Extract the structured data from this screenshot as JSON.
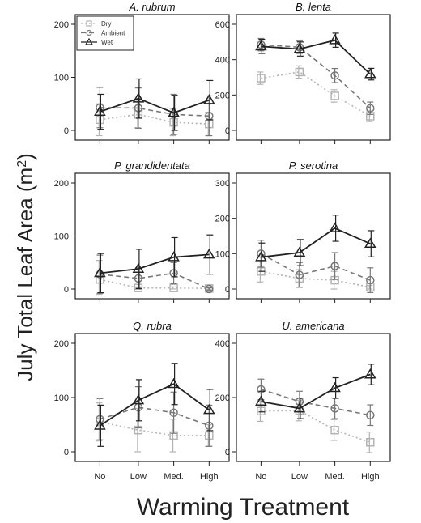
{
  "figure": {
    "ylabel": "July Total Leaf Area (m",
    "ylabel_sup": "2",
    "ylabel_close": ")",
    "xlabel": "Warming Treatment"
  },
  "chart_data": [
    {
      "type": "line",
      "title": "A. rubrum",
      "categories": [
        "No",
        "Low",
        "Med.",
        "High"
      ],
      "ylim": [
        0,
        200
      ],
      "yticks": [
        0,
        100,
        200
      ],
      "legend": {
        "placement": "top-left",
        "entries": [
          "Dry",
          "Ambient",
          "Wet"
        ]
      },
      "series": [
        {
          "name": "Dry",
          "color": "#b3b3b3",
          "values": [
            20,
            30,
            15,
            12
          ],
          "errors": [
            30,
            25,
            25,
            22
          ]
        },
        {
          "name": "Ambient",
          "color": "#777777",
          "values": [
            43,
            42,
            30,
            27
          ],
          "errors": [
            38,
            38,
            38,
            38
          ]
        },
        {
          "name": "Wet",
          "color": "#222222",
          "values": [
            35,
            60,
            33,
            57
          ],
          "errors": [
            33,
            37,
            33,
            37
          ]
        }
      ]
    },
    {
      "type": "line",
      "title": "B. lenta",
      "categories": [
        "No",
        "Low",
        "Med.",
        "High"
      ],
      "ylim": [
        0,
        600
      ],
      "yticks": [
        0,
        200,
        400,
        600
      ],
      "series": [
        {
          "name": "Dry",
          "color": "#b3b3b3",
          "values": [
            295,
            330,
            195,
            80
          ],
          "errors": [
            35,
            35,
            35,
            30
          ]
        },
        {
          "name": "Ambient",
          "color": "#777777",
          "values": [
            485,
            470,
            310,
            125
          ],
          "errors": [
            35,
            35,
            40,
            35
          ]
        },
        {
          "name": "Wet",
          "color": "#222222",
          "values": [
            475,
            460,
            510,
            318
          ],
          "errors": [
            40,
            40,
            40,
            33
          ]
        }
      ]
    },
    {
      "type": "line",
      "title": "P. grandidentata",
      "categories": [
        "No",
        "Low",
        "Med.",
        "High"
      ],
      "ylim": [
        0,
        200
      ],
      "yticks": [
        0,
        100,
        200
      ],
      "series": [
        {
          "name": "Dry",
          "color": "#b3b3b3",
          "values": [
            18,
            2,
            2,
            1
          ],
          "errors": [
            36,
            2,
            2,
            2
          ]
        },
        {
          "name": "Ambient",
          "color": "#777777",
          "values": [
            28,
            20,
            30,
            0
          ],
          "errors": [
            36,
            20,
            20,
            2
          ]
        },
        {
          "name": "Wet",
          "color": "#222222",
          "values": [
            30,
            38,
            60,
            65
          ],
          "errors": [
            37,
            37,
            37,
            37
          ]
        }
      ]
    },
    {
      "type": "line",
      "title": "P. serotina",
      "categories": [
        "No",
        "Low",
        "Med.",
        "High"
      ],
      "ylim": [
        0,
        300
      ],
      "yticks": [
        0,
        100,
        200,
        300
      ],
      "series": [
        {
          "name": "Dry",
          "color": "#b3b3b3",
          "values": [
            50,
            30,
            25,
            5
          ],
          "errors": [
            30,
            25,
            25,
            5
          ]
        },
        {
          "name": "Ambient",
          "color": "#777777",
          "values": [
            100,
            40,
            65,
            25
          ],
          "errors": [
            38,
            35,
            38,
            35
          ]
        },
        {
          "name": "Wet",
          "color": "#222222",
          "values": [
            90,
            103,
            172,
            128
          ],
          "errors": [
            40,
            37,
            37,
            37
          ]
        }
      ]
    },
    {
      "type": "line",
      "title": "Q. rubra",
      "categories": [
        "No",
        "Low",
        "Med.",
        "High"
      ],
      "ylim": [
        0,
        200
      ],
      "yticks": [
        0,
        100,
        200
      ],
      "series": [
        {
          "name": "Dry",
          "color": "#b3b3b3",
          "values": [
            55,
            40,
            30,
            30
          ],
          "errors": [
            35,
            40,
            30,
            20
          ]
        },
        {
          "name": "Ambient",
          "color": "#777777",
          "values": [
            60,
            82,
            72,
            48
          ],
          "errors": [
            38,
            38,
            38,
            38
          ]
        },
        {
          "name": "Wet",
          "color": "#222222",
          "values": [
            48,
            95,
            125,
            77
          ],
          "errors": [
            38,
            38,
            38,
            38
          ]
        }
      ]
    },
    {
      "type": "line",
      "title": "U. americana",
      "categories": [
        "No",
        "Low",
        "Med.",
        "High"
      ],
      "ylim": [
        0,
        400
      ],
      "yticks": [
        0,
        200,
        400
      ],
      "series": [
        {
          "name": "Dry",
          "color": "#b3b3b3",
          "values": [
            150,
            152,
            80,
            35
          ],
          "errors": [
            38,
            38,
            38,
            38
          ]
        },
        {
          "name": "Ambient",
          "color": "#777777",
          "values": [
            230,
            185,
            160,
            135
          ],
          "errors": [
            38,
            38,
            38,
            38
          ]
        },
        {
          "name": "Wet",
          "color": "#222222",
          "values": [
            185,
            160,
            235,
            285
          ],
          "errors": [
            38,
            38,
            38,
            38
          ]
        }
      ]
    }
  ]
}
